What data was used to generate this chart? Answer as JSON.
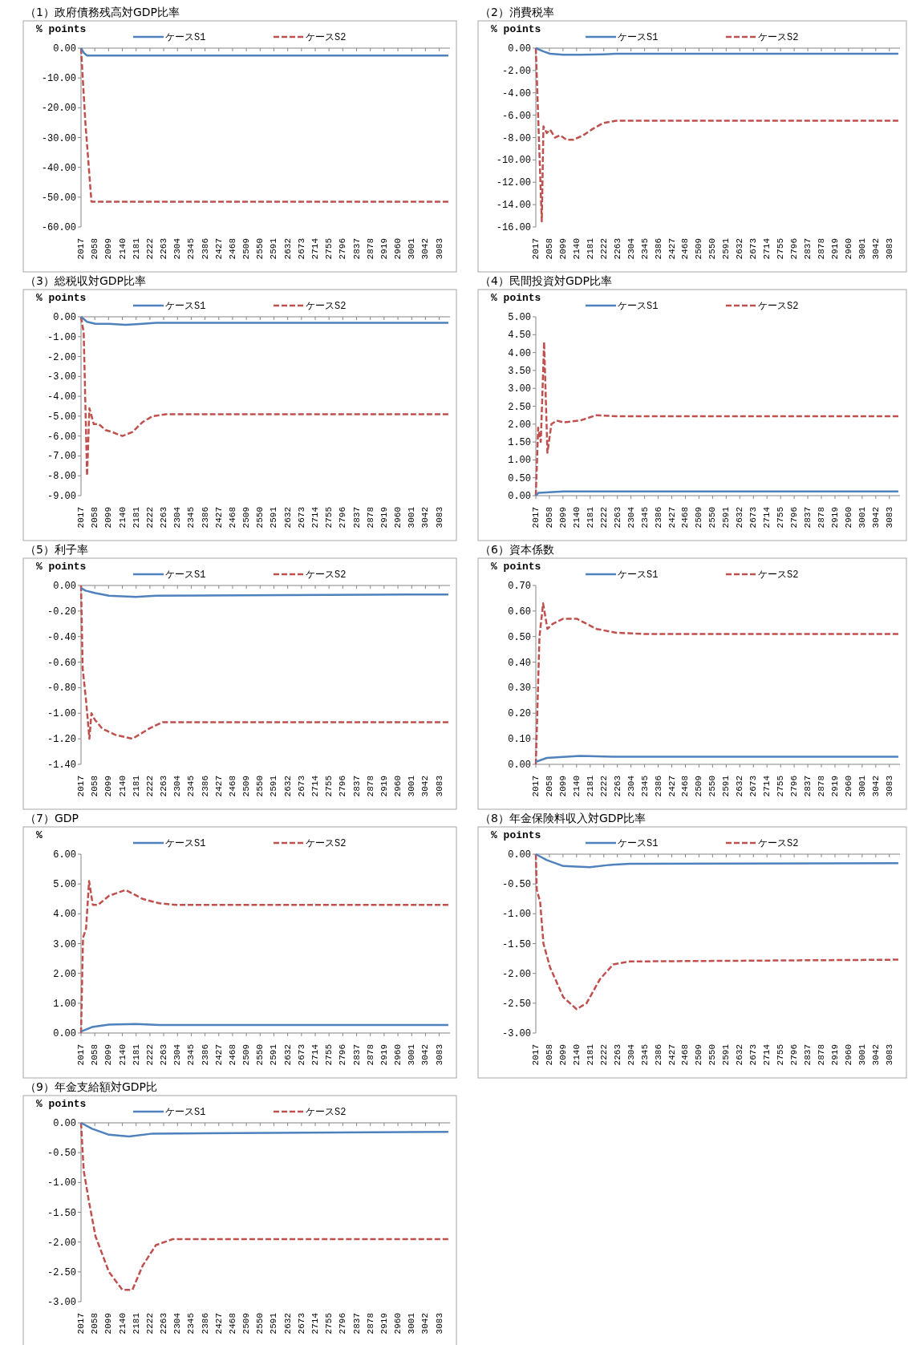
{
  "chart_data": [
    {
      "type": "line",
      "title": "（1）政府債務残高対GDP比率",
      "ylabel": "% points",
      "legend": "top",
      "xlim": [
        2017,
        3115
      ],
      "xticks": [
        2017,
        2058,
        2099,
        2140,
        2181,
        2222,
        2263,
        2304,
        2345,
        2386,
        2427,
        2468,
        2509,
        2550,
        2591,
        2632,
        2673,
        2714,
        2755,
        2796,
        2837,
        2878,
        2919,
        2960,
        3001,
        3042,
        3083
      ],
      "ylim": [
        -60,
        0
      ],
      "yticks": [
        {
          "value": 0,
          "label": "0.00"
        },
        {
          "value": -10,
          "label": "-10.00"
        },
        {
          "value": -20,
          "label": "-20.00"
        },
        {
          "value": -30,
          "label": "-30.00"
        },
        {
          "value": -40,
          "label": "-40.00"
        },
        {
          "value": -50,
          "label": "-50.00"
        },
        {
          "value": -60,
          "label": "-60.00"
        }
      ],
      "series": [
        {
          "name": "ケースS1",
          "color": "#4f81bd",
          "line_style": "solid",
          "x": [
            2017,
            2025,
            2035,
            2100,
            3110
          ],
          "values": [
            0,
            -1.5,
            -2.5,
            -2.5,
            -2.5
          ]
        },
        {
          "name": "ケースS2",
          "color": "#c0504d",
          "line_style": "dashed",
          "x": [
            2017,
            2030,
            2048,
            2100,
            3110
          ],
          "values": [
            0,
            -25,
            -51.5,
            -51.5,
            -51.5
          ]
        }
      ]
    },
    {
      "type": "line",
      "title": "（2）消費税率",
      "ylabel": "% points",
      "legend": "top",
      "xlim": [
        2017,
        3115
      ],
      "xticks": [
        2017,
        2058,
        2099,
        2140,
        2181,
        2222,
        2263,
        2304,
        2345,
        2386,
        2427,
        2468,
        2509,
        2550,
        2591,
        2632,
        2673,
        2714,
        2755,
        2796,
        2837,
        2878,
        2919,
        2960,
        3001,
        3042,
        3083
      ],
      "ylim": [
        -16,
        0
      ],
      "yticks": [
        {
          "value": 0,
          "label": "0.00"
        },
        {
          "value": -2,
          "label": "-2.00"
        },
        {
          "value": -4,
          "label": "-4.00"
        },
        {
          "value": -6,
          "label": "-6.00"
        },
        {
          "value": -8,
          "label": "-8.00"
        },
        {
          "value": -10,
          "label": "-10.00"
        },
        {
          "value": -12,
          "label": "-12.00"
        },
        {
          "value": -14,
          "label": "-14.00"
        },
        {
          "value": -16,
          "label": "-16.00"
        }
      ],
      "series": [
        {
          "name": "ケースS1",
          "color": "#4f81bd",
          "line_style": "solid",
          "x": [
            2017,
            2040,
            2060,
            2100,
            2150,
            2220,
            2260,
            3110
          ],
          "values": [
            0,
            -0.3,
            -0.5,
            -0.6,
            -0.6,
            -0.55,
            -0.5,
            -0.5
          ]
        },
        {
          "name": "ケースS2",
          "color": "#c0504d",
          "line_style": "dashed",
          "x": [
            2017,
            2035,
            2040,
            2050,
            2060,
            2075,
            2090,
            2110,
            2130,
            2160,
            2190,
            2220,
            2260,
            2300,
            3110
          ],
          "values": [
            0,
            -15.5,
            -7,
            -7.6,
            -7.3,
            -8,
            -7.8,
            -8.2,
            -8.2,
            -7.8,
            -7.2,
            -6.7,
            -6.5,
            -6.5,
            -6.5
          ]
        }
      ]
    },
    {
      "type": "line",
      "title": "（3）総税収対GDP比率",
      "ylabel": "% points",
      "legend": "top",
      "xlim": [
        2017,
        3115
      ],
      "xticks": [
        2017,
        2058,
        2099,
        2140,
        2181,
        2222,
        2263,
        2304,
        2345,
        2386,
        2427,
        2468,
        2509,
        2550,
        2591,
        2632,
        2673,
        2714,
        2755,
        2796,
        2837,
        2878,
        2919,
        2960,
        3001,
        3042,
        3083
      ],
      "ylim": [
        -9,
        0
      ],
      "yticks": [
        {
          "value": 0,
          "label": "0.00"
        },
        {
          "value": -1,
          "label": "-1.00"
        },
        {
          "value": -2,
          "label": "-2.00"
        },
        {
          "value": -3,
          "label": "-3.00"
        },
        {
          "value": -4,
          "label": "-4.00"
        },
        {
          "value": -5,
          "label": "-5.00"
        },
        {
          "value": -6,
          "label": "-6.00"
        },
        {
          "value": -7,
          "label": "-7.00"
        },
        {
          "value": -8,
          "label": "-8.00"
        },
        {
          "value": -9,
          "label": "-9.00"
        }
      ],
      "series": [
        {
          "name": "ケースS1",
          "color": "#4f81bd",
          "line_style": "solid",
          "x": [
            2017,
            2035,
            2060,
            2100,
            2150,
            2200,
            2240,
            3110
          ],
          "values": [
            0,
            -0.25,
            -0.35,
            -0.35,
            -0.4,
            -0.35,
            -0.3,
            -0.3
          ]
        },
        {
          "name": "ケースS2",
          "color": "#c0504d",
          "line_style": "dashed",
          "x": [
            2017,
            2025,
            2035,
            2042,
            2055,
            2070,
            2090,
            2110,
            2140,
            2170,
            2200,
            2230,
            2270,
            3110
          ],
          "values": [
            0,
            -0.8,
            -8,
            -4.6,
            -5.4,
            -5.4,
            -5.7,
            -5.8,
            -6,
            -5.8,
            -5.3,
            -5,
            -4.9,
            -4.9
          ]
        }
      ]
    },
    {
      "type": "line",
      "title": "（4）民間投資対GDP比率",
      "ylabel": "% points",
      "legend": "top",
      "xlim": [
        2017,
        3115
      ],
      "xticks": [
        2017,
        2058,
        2099,
        2140,
        2181,
        2222,
        2263,
        2304,
        2345,
        2386,
        2427,
        2468,
        2509,
        2550,
        2591,
        2632,
        2673,
        2714,
        2755,
        2796,
        2837,
        2878,
        2919,
        2960,
        3001,
        3042,
        3083
      ],
      "ylim": [
        0,
        5
      ],
      "yticks": [
        {
          "value": 0,
          "label": "0.00"
        },
        {
          "value": 0.5,
          "label": "0.50"
        },
        {
          "value": 1,
          "label": "1.00"
        },
        {
          "value": 1.5,
          "label": "1.50"
        },
        {
          "value": 2,
          "label": "2.00"
        },
        {
          "value": 2.5,
          "label": "2.50"
        },
        {
          "value": 3,
          "label": "3.00"
        },
        {
          "value": 3.5,
          "label": "3.50"
        },
        {
          "value": 4,
          "label": "4.00"
        },
        {
          "value": 4.5,
          "label": "4.50"
        },
        {
          "value": 5,
          "label": "5.00"
        }
      ],
      "series": [
        {
          "name": "ケースS1",
          "color": "#4f81bd",
          "line_style": "solid",
          "x": [
            2017,
            2025,
            2100,
            3110
          ],
          "values": [
            0,
            0.08,
            0.12,
            0.12
          ]
        },
        {
          "name": "ケースS2",
          "color": "#c0504d",
          "line_style": "dashed",
          "x": [
            2017,
            2024,
            2032,
            2042,
            2052,
            2064,
            2080,
            2100,
            2150,
            2200,
            2260,
            3110
          ],
          "values": [
            0,
            1.9,
            1.5,
            4.3,
            1.2,
            2,
            2.1,
            2.05,
            2.1,
            2.25,
            2.22,
            2.22
          ]
        }
      ]
    },
    {
      "type": "line",
      "title": "（5）利子率",
      "ylabel": "% points",
      "legend": "top",
      "xlim": [
        2017,
        3115
      ],
      "xticks": [
        2017,
        2058,
        2099,
        2140,
        2181,
        2222,
        2263,
        2304,
        2345,
        2386,
        2427,
        2468,
        2509,
        2550,
        2591,
        2632,
        2673,
        2714,
        2755,
        2796,
        2837,
        2878,
        2919,
        2960,
        3001,
        3042,
        3083
      ],
      "ylim": [
        -1.4,
        0
      ],
      "yticks": [
        {
          "value": 0,
          "label": "0.00"
        },
        {
          "value": -0.2,
          "label": "-0.20"
        },
        {
          "value": -0.4,
          "label": "-0.40"
        },
        {
          "value": -0.6,
          "label": "-0.60"
        },
        {
          "value": -0.8,
          "label": "-0.80"
        },
        {
          "value": -1,
          "label": "-1.00"
        },
        {
          "value": -1.2,
          "label": "-1.20"
        },
        {
          "value": -1.4,
          "label": "-1.40"
        }
      ],
      "series": [
        {
          "name": "ケースS1",
          "color": "#4f81bd",
          "line_style": "solid",
          "x": [
            2017,
            2030,
            2060,
            2100,
            2180,
            2240,
            3110
          ],
          "values": [
            -0.02,
            -0.04,
            -0.06,
            -0.08,
            -0.09,
            -0.08,
            -0.07
          ]
        },
        {
          "name": "ケースS2",
          "color": "#c0504d",
          "line_style": "dashed",
          "x": [
            2017,
            2022,
            2032,
            2042,
            2048,
            2058,
            2080,
            2120,
            2170,
            2220,
            2260,
            3110
          ],
          "values": [
            0,
            -0.65,
            -0.9,
            -1.2,
            -1,
            -1.05,
            -1.12,
            -1.17,
            -1.2,
            -1.12,
            -1.07,
            -1.07
          ]
        }
      ]
    },
    {
      "type": "line",
      "title": "（6）資本係数",
      "ylabel": "% points",
      "legend": "top",
      "xlim": [
        2017,
        3115
      ],
      "xticks": [
        2017,
        2058,
        2099,
        2140,
        2181,
        2222,
        2263,
        2304,
        2345,
        2386,
        2427,
        2468,
        2509,
        2550,
        2591,
        2632,
        2673,
        2714,
        2755,
        2796,
        2837,
        2878,
        2919,
        2960,
        3001,
        3042,
        3083
      ],
      "ylim": [
        0,
        0.7
      ],
      "yticks": [
        {
          "value": 0,
          "label": "0.00"
        },
        {
          "value": 0.1,
          "label": "0.10"
        },
        {
          "value": 0.2,
          "label": "0.20"
        },
        {
          "value": 0.3,
          "label": "0.30"
        },
        {
          "value": 0.4,
          "label": "0.40"
        },
        {
          "value": 0.5,
          "label": "0.50"
        },
        {
          "value": 0.6,
          "label": "0.60"
        },
        {
          "value": 0.7,
          "label": "0.70"
        }
      ],
      "series": [
        {
          "name": "ケースS1",
          "color": "#4f81bd",
          "line_style": "solid",
          "x": [
            2017,
            2050,
            2150,
            2250,
            3110
          ],
          "values": [
            0.01,
            0.025,
            0.033,
            0.03,
            0.03
          ]
        },
        {
          "name": "ケースS2",
          "color": "#c0504d",
          "line_style": "dashed",
          "x": [
            2017,
            2028,
            2039,
            2052,
            2068,
            2100,
            2140,
            2200,
            2260,
            2350,
            3110
          ],
          "values": [
            0,
            0.5,
            0.63,
            0.53,
            0.55,
            0.57,
            0.57,
            0.53,
            0.515,
            0.51,
            0.51
          ]
        }
      ]
    },
    {
      "type": "line",
      "title": "（7）GDP",
      "ylabel": "%",
      "legend": "top",
      "xlim": [
        2017,
        3115
      ],
      "xticks": [
        2017,
        2058,
        2099,
        2140,
        2181,
        2222,
        2263,
        2304,
        2345,
        2386,
        2427,
        2468,
        2509,
        2550,
        2591,
        2632,
        2673,
        2714,
        2755,
        2796,
        2837,
        2878,
        2919,
        2960,
        3001,
        3042,
        3083
      ],
      "ylim": [
        0,
        6
      ],
      "yticks": [
        {
          "value": 0,
          "label": "0.00"
        },
        {
          "value": 1,
          "label": "1.00"
        },
        {
          "value": 2,
          "label": "2.00"
        },
        {
          "value": 3,
          "label": "3.00"
        },
        {
          "value": 4,
          "label": "4.00"
        },
        {
          "value": 5,
          "label": "5.00"
        },
        {
          "value": 6,
          "label": "6.00"
        }
      ],
      "series": [
        {
          "name": "ケースS1",
          "color": "#4f81bd",
          "line_style": "solid",
          "x": [
            2017,
            2050,
            2100,
            2180,
            2250,
            3110
          ],
          "values": [
            0.05,
            0.2,
            0.28,
            0.3,
            0.27,
            0.27
          ]
        },
        {
          "name": "ケースS2",
          "color": "#c0504d",
          "line_style": "dashed",
          "x": [
            2017,
            2023,
            2032,
            2041,
            2052,
            2068,
            2100,
            2150,
            2200,
            2250,
            2300,
            3110
          ],
          "values": [
            0,
            3.2,
            3.5,
            5.1,
            4.3,
            4.3,
            4.6,
            4.8,
            4.5,
            4.35,
            4.3,
            4.3
          ]
        }
      ]
    },
    {
      "type": "line",
      "title": "（8）年金保険料収入対GDP比率",
      "ylabel": "% points",
      "legend": "top",
      "xlim": [
        2017,
        3115
      ],
      "xticks": [
        2017,
        2058,
        2099,
        2140,
        2181,
        2222,
        2263,
        2304,
        2345,
        2386,
        2427,
        2468,
        2509,
        2550,
        2591,
        2632,
        2673,
        2714,
        2755,
        2796,
        2837,
        2878,
        2919,
        2960,
        3001,
        3042,
        3083
      ],
      "ylim": [
        -3,
        0
      ],
      "yticks": [
        {
          "value": 0,
          "label": "0.00"
        },
        {
          "value": -0.5,
          "label": "-0.50"
        },
        {
          "value": -1,
          "label": "-1.00"
        },
        {
          "value": -1.5,
          "label": "-1.50"
        },
        {
          "value": -2,
          "label": "-2.00"
        },
        {
          "value": -2.5,
          "label": "-2.50"
        },
        {
          "value": -3,
          "label": "-3.00"
        }
      ],
      "series": [
        {
          "name": "ケースS1",
          "color": "#4f81bd",
          "line_style": "solid",
          "x": [
            2017,
            2050,
            2100,
            2180,
            2240,
            2300,
            3110
          ],
          "values": [
            0,
            -0.1,
            -0.2,
            -0.22,
            -0.18,
            -0.16,
            -0.15
          ]
        },
        {
          "name": "ケースS2",
          "color": "#c0504d",
          "line_style": "dashed",
          "x": [
            2017,
            2020,
            2030,
            2040,
            2060,
            2100,
            2140,
            2170,
            2210,
            2250,
            2300,
            3110
          ],
          "values": [
            0,
            -0.6,
            -0.8,
            -1.5,
            -1.9,
            -2.4,
            -2.6,
            -2.5,
            -2.1,
            -1.85,
            -1.8,
            -1.77
          ]
        }
      ]
    },
    {
      "type": "line",
      "title": "（9）年金支給額対GDP比",
      "ylabel": "% points",
      "legend": "top",
      "xlim": [
        2017,
        3115
      ],
      "xticks": [
        2017,
        2058,
        2099,
        2140,
        2181,
        2222,
        2263,
        2304,
        2345,
        2386,
        2427,
        2468,
        2509,
        2550,
        2591,
        2632,
        2673,
        2714,
        2755,
        2796,
        2837,
        2878,
        2919,
        2960,
        3001,
        3042,
        3083
      ],
      "ylim": [
        -3,
        0
      ],
      "yticks": [
        {
          "value": 0,
          "label": "0.00"
        },
        {
          "value": -0.5,
          "label": "-0.50"
        },
        {
          "value": -1,
          "label": "-1.00"
        },
        {
          "value": -1.5,
          "label": "-1.50"
        },
        {
          "value": -2,
          "label": "-2.00"
        },
        {
          "value": -2.5,
          "label": "-2.50"
        },
        {
          "value": -3,
          "label": "-3.00"
        }
      ],
      "series": [
        {
          "name": "ケースS1",
          "color": "#4f81bd",
          "line_style": "solid",
          "x": [
            2017,
            2050,
            2100,
            2160,
            2230,
            3110
          ],
          "values": [
            0,
            -0.1,
            -0.2,
            -0.23,
            -0.18,
            -0.15
          ]
        },
        {
          "name": "ケースS2",
          "color": "#c0504d",
          "line_style": "dashed",
          "x": [
            2017,
            2025,
            2040,
            2060,
            2100,
            2140,
            2170,
            2200,
            2240,
            2290,
            3110
          ],
          "values": [
            0,
            -0.8,
            -1.3,
            -1.9,
            -2.5,
            -2.8,
            -2.8,
            -2.4,
            -2.05,
            -1.95,
            -1.95
          ]
        }
      ]
    }
  ]
}
